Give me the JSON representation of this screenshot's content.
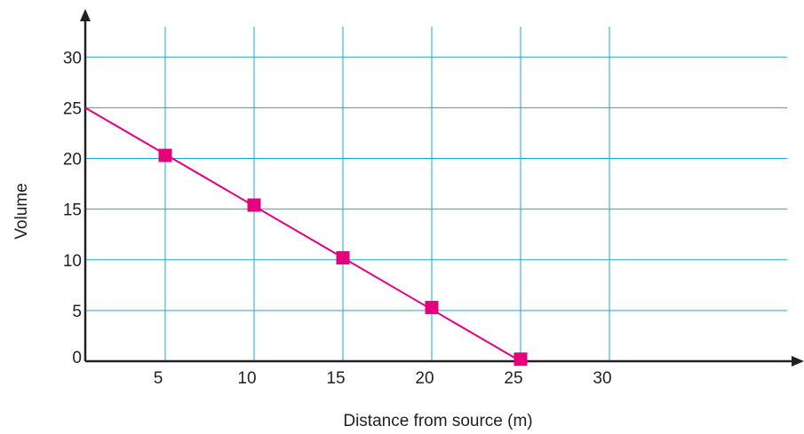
{
  "chart_data": {
    "type": "line",
    "title": "",
    "xlabel": "Distance from source (m)",
    "ylabel": "Volume",
    "x_ticks": [
      "5",
      "10",
      "15",
      "20",
      "25",
      "30"
    ],
    "y_ticks": [
      "0",
      "5",
      "10",
      "15",
      "20",
      "25",
      "30"
    ],
    "xlim": [
      0.5,
      40
    ],
    "ylim": [
      0,
      33
    ],
    "grid": true,
    "line": {
      "x": [
        0.5,
        25
      ],
      "y": [
        25,
        0
      ]
    },
    "series": [
      {
        "x": [
          5,
          10,
          15,
          20,
          25
        ],
        "y": [
          20.3,
          15.4,
          10.2,
          5.3,
          0.2
        ]
      }
    ],
    "colors": {
      "grid": "#1aa7d9",
      "series": "#e6007e",
      "axis": "#231f20"
    }
  }
}
